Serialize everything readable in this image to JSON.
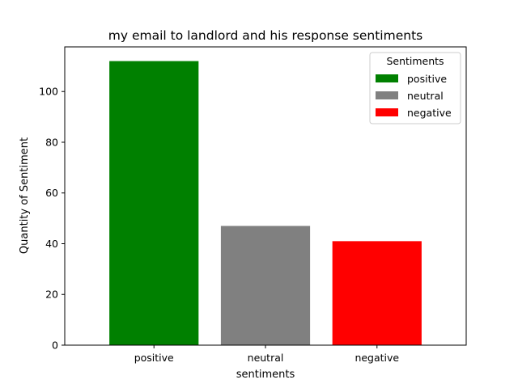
{
  "chart_data": {
    "type": "bar",
    "title": "my email to landlord and his response sentiments",
    "xlabel": "sentiments",
    "ylabel": "Quantity of Sentiment",
    "categories": [
      "positive",
      "neutral",
      "negative"
    ],
    "values": [
      112,
      47,
      41
    ],
    "colors": [
      "#008000",
      "#808080",
      "#ff0000"
    ],
    "ylim": [
      0,
      117.6
    ],
    "yticks": [
      0,
      20,
      40,
      60,
      80,
      100
    ],
    "grid": false,
    "legend": {
      "title": "Sentiments",
      "placement": "top-right",
      "entries": [
        "positive",
        "neutral",
        "negative"
      ]
    }
  }
}
